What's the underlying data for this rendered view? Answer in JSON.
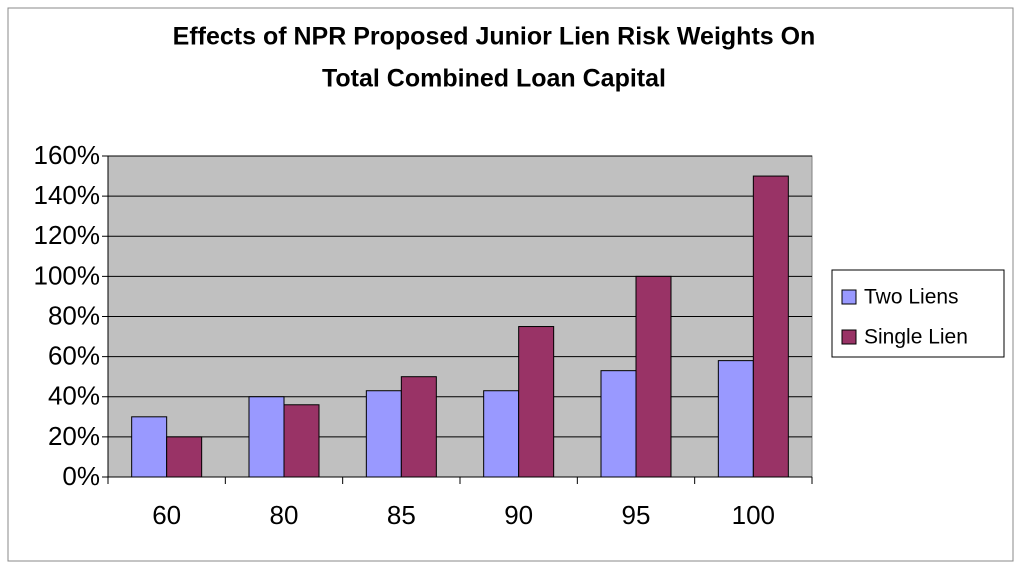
{
  "chart_data": {
    "type": "bar",
    "title": [
      "Effects of NPR Proposed Junior Lien Risk Weights On",
      "Total Combined Loan Capital"
    ],
    "categories": [
      "60",
      "80",
      "85",
      "90",
      "95",
      "100"
    ],
    "series": [
      {
        "name": "Two Liens",
        "color": "#9999ff",
        "values": [
          30,
          40,
          43,
          43,
          53,
          58
        ]
      },
      {
        "name": "Single Lien",
        "color": "#993366",
        "values": [
          20,
          36,
          50,
          75,
          100,
          150
        ]
      }
    ],
    "ylim": [
      0,
      160
    ],
    "yticks": [
      {
        "value": 0,
        "label": "0%"
      },
      {
        "value": 20,
        "label": "20%"
      },
      {
        "value": 40,
        "label": "40%"
      },
      {
        "value": 60,
        "label": "60%"
      },
      {
        "value": 80,
        "label": "80%"
      },
      {
        "value": 100,
        "label": "100%"
      },
      {
        "value": 120,
        "label": "120%"
      },
      {
        "value": 140,
        "label": "140%"
      },
      {
        "value": 160,
        "label": "160%"
      }
    ],
    "grid": true,
    "legend": "right",
    "plot_background": "#c0c0c0"
  }
}
